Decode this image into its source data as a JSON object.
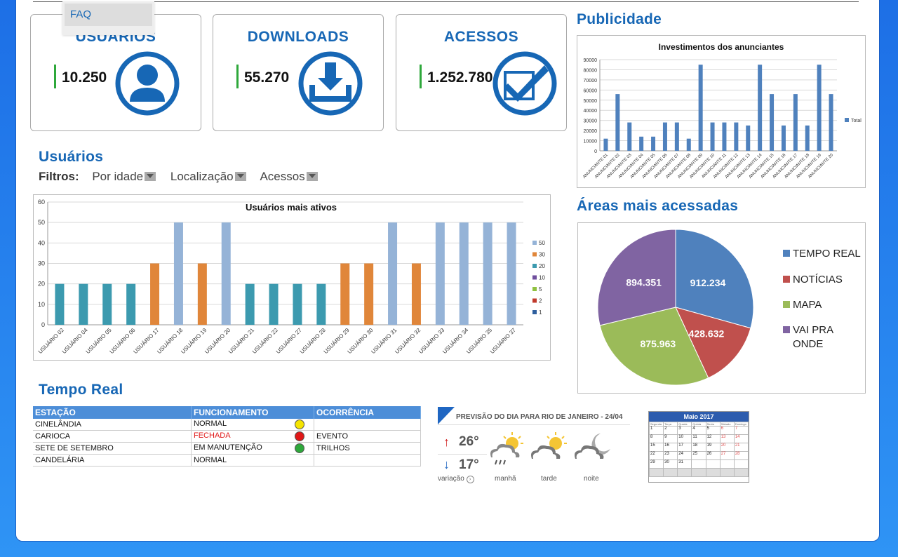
{
  "menu": {
    "faq": "FAQ"
  },
  "stats": [
    {
      "title": "USUÁRIOS",
      "value": "10.250",
      "icon": "user-icon"
    },
    {
      "title": "DOWNLOADS",
      "value": "55.270",
      "icon": "download-icon"
    },
    {
      "title": "ACESSOS",
      "value": "1.252.780",
      "icon": "checkbox-icon"
    }
  ],
  "sections": {
    "usuarios": "Usuários",
    "publicidade": "Publicidade",
    "areas": "Áreas mais acessadas",
    "tempo_real": "Tempo Real"
  },
  "filters": {
    "label": "Filtros:",
    "options": [
      "Por idade",
      "Localização",
      "Acessos"
    ]
  },
  "users_chart": {
    "chart_data": {
      "type": "bar",
      "title": "Usuários mais ativos",
      "categories": [
        "USUÁRIO 02",
        "USUÁRIO 04",
        "USUÁRIO 05",
        "USUÁRIO 06",
        "USUÁRIO 17",
        "USUÁRIO 18",
        "USUÁRIO 19",
        "USUÁRIO 20",
        "USUÁRIO 21",
        "USUÁRIO 22",
        "USUÁRIO 27",
        "USUÁRIO 28",
        "USUÁRIO 29",
        "USUÁRIO 30",
        "USUÁRIO 31",
        "USUÁRIO 32",
        "USUÁRIO 33",
        "USUÁRIO 34",
        "USUÁRIO 35",
        "USUÁRIO 37"
      ],
      "values": [
        20,
        20,
        20,
        20,
        30,
        50,
        30,
        50,
        20,
        20,
        20,
        20,
        30,
        30,
        50,
        30,
        50,
        50,
        50,
        50
      ],
      "ylim": [
        0,
        60
      ],
      "yticks": [
        0,
        10,
        20,
        30,
        40,
        50,
        60
      ],
      "legend": [
        "50",
        "30",
        "20",
        "10",
        "5",
        "2",
        "1"
      ],
      "legend_colors": [
        "#95b3d7",
        "#e0863a",
        "#3c9aaf",
        "#6f4f9e",
        "#8fc140",
        "#c0392b",
        "#2e5f9e"
      ],
      "value_colors": {
        "20": "#3c9aaf",
        "30": "#e0863a",
        "50": "#95b3d7"
      },
      "grid": true,
      "legend_position": "right"
    }
  },
  "ads_chart": {
    "chart_data": {
      "type": "bar",
      "title": "Investimentos dos anunciantes",
      "categories": [
        "ANUNCIANTE 01",
        "ANUNCIANTE 02",
        "ANUNCIANTE 03",
        "ANUNCIANTE 04",
        "ANUNCIANTE 05",
        "ANUNCIANTE 06",
        "ANUNCIANTE 07",
        "ANUNCIANTE 08",
        "ANUNCIANTE 09",
        "ANUNCIANTE 10",
        "ANUNCIANTE 11",
        "ANUNCIANTE 12",
        "ANUNCIANTE 13",
        "ANUNCIANTE 14",
        "ANUNCIANTE 15",
        "ANUNCIANTE 16",
        "ANUNCIANTE 17",
        "ANUNCIANTE 18",
        "ANUNCIANTE 19",
        "ANUNCIANTE 20"
      ],
      "values": [
        12000,
        56000,
        28000,
        14000,
        14000,
        28000,
        28000,
        12000,
        85000,
        28000,
        28000,
        28000,
        25000,
        85000,
        56000,
        25000,
        56000,
        25000,
        85000,
        56000
      ],
      "ylim": [
        0,
        90000
      ],
      "yticks": [
        0,
        10000,
        20000,
        30000,
        40000,
        50000,
        60000,
        70000,
        80000,
        90000
      ],
      "legend": [
        "Total"
      ],
      "color": "#4f81bd",
      "grid": true,
      "legend_position": "right"
    }
  },
  "areas_chart": {
    "chart_data": {
      "type": "pie",
      "labels": [
        "TEMPO REAL",
        "NOTÍCIAS",
        "MAPA",
        "VAI PRA ONDE"
      ],
      "values": [
        912234,
        428632,
        875963,
        894351
      ],
      "display_values": [
        "912.234",
        "428.632",
        "875.963",
        "894.351"
      ],
      "colors": [
        "#4f81bd",
        "#c0504d",
        "#9bbb59",
        "#8064a2"
      ],
      "legend_position": "right"
    }
  },
  "realtime_table": {
    "headers": [
      "ESTAÇÃO",
      "FUNCIONAMENTO",
      "OCORRÊNCIA"
    ],
    "rows": [
      {
        "station": "CINELÂNDIA",
        "status": "NORMAL",
        "icon": "yellow-smile-icon",
        "occurrence": ""
      },
      {
        "station": "CARIOCA",
        "status": "FECHADA",
        "icon": "red-status-icon",
        "occurrence": "EVENTO"
      },
      {
        "station": "SETE DE SETEMBRO",
        "status": "EM MANUTENÇÃO",
        "icon": "green-status-icon",
        "occurrence": "TRILHOS"
      },
      {
        "station": "CANDELÁRIA",
        "status": "NORMAL",
        "icon": "",
        "occurrence": ""
      }
    ]
  },
  "weather": {
    "title": "PREVISÃO DO DIA PARA RIO DE JANEIRO - 24/04",
    "max": "26°",
    "min": "17°",
    "variation": "variação",
    "periods": [
      "manhã",
      "tarde",
      "noite"
    ]
  },
  "calendar": {
    "title": "Maio 2017",
    "day_names": [
      "Segunda",
      "Terça",
      "Quarta",
      "Quinta",
      "Sexta",
      "Sábado",
      "Domingo"
    ],
    "weeks": [
      [
        "1",
        "2",
        "3",
        "4",
        "5",
        "6",
        "7"
      ],
      [
        "8",
        "9",
        "10",
        "11",
        "12",
        "13",
        "14"
      ],
      [
        "15",
        "16",
        "17",
        "18",
        "19",
        "20",
        "21"
      ],
      [
        "22",
        "23",
        "24",
        "25",
        "26",
        "27",
        "28"
      ],
      [
        "29",
        "30",
        "31",
        "",
        "",
        "",
        ""
      ],
      [
        "",
        "",
        "",
        "",
        "",
        "",
        ""
      ]
    ]
  }
}
